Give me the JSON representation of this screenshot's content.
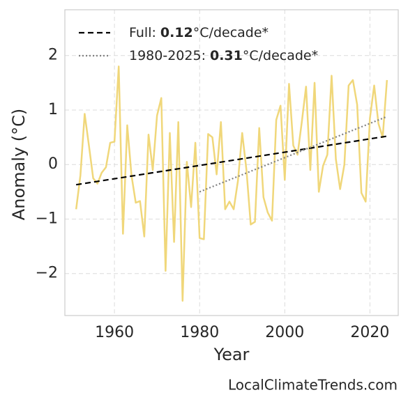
{
  "chart_data": {
    "type": "line",
    "x_label": "Year",
    "y_label": "Anomaly (°C)",
    "x": [
      1951,
      1952,
      1953,
      1954,
      1955,
      1956,
      1957,
      1958,
      1959,
      1960,
      1961,
      1962,
      1963,
      1964,
      1965,
      1966,
      1967,
      1968,
      1969,
      1970,
      1971,
      1972,
      1973,
      1974,
      1975,
      1976,
      1977,
      1978,
      1979,
      1980,
      1981,
      1982,
      1983,
      1984,
      1985,
      1986,
      1987,
      1988,
      1989,
      1990,
      1991,
      1992,
      1993,
      1994,
      1995,
      1996,
      1997,
      1998,
      1999,
      2000,
      2001,
      2002,
      2003,
      2004,
      2005,
      2006,
      2007,
      2008,
      2009,
      2010,
      2011,
      2012,
      2013,
      2014,
      2015,
      2016,
      2017,
      2018,
      2019,
      2020,
      2021,
      2022,
      2023,
      2024
    ],
    "series": [
      {
        "color": "#f0d77a",
        "values": [
          -0.82,
          -0.2,
          0.93,
          0.35,
          -0.25,
          -0.35,
          -0.15,
          -0.05,
          0.4,
          0.42,
          1.8,
          -1.27,
          0.72,
          -0.2,
          -0.7,
          -0.67,
          -1.32,
          0.55,
          -0.1,
          0.9,
          1.22,
          -1.95,
          0.58,
          -1.42,
          0.78,
          -2.5,
          0.05,
          -0.78,
          0.4,
          -1.35,
          -1.37,
          0.56,
          0.5,
          -0.18,
          0.78,
          -0.82,
          -0.68,
          -0.82,
          -0.3,
          0.58,
          -0.1,
          -1.1,
          -1.05,
          0.67,
          -0.6,
          -0.88,
          -1.03,
          0.82,
          1.08,
          -0.28,
          1.48,
          0.35,
          0.18,
          0.78,
          1.43,
          -0.1,
          1.5,
          -0.5,
          -0.02,
          0.18,
          1.63,
          0.1,
          -0.45,
          0.0,
          1.45,
          1.55,
          1.1,
          -0.52,
          -0.68,
          0.85,
          1.45,
          0.75,
          0.5,
          1.55
        ]
      }
    ],
    "trend_lines": [
      {
        "label": "Full:",
        "rate": 0.12,
        "unit": "°C/decade*",
        "color": "#000000",
        "style": "dashed",
        "x": [
          1951,
          2024
        ],
        "values": [
          -0.37,
          0.52
        ]
      },
      {
        "label": "1980-2025:",
        "rate": 0.31,
        "unit": "°C/decade*",
        "color": "#808080",
        "style": "dotted",
        "x": [
          1980,
          2024
        ],
        "values": [
          -0.5,
          0.88
        ]
      }
    ],
    "xlim": [
      1948.35,
      2026.65
    ],
    "xticks": [
      1960,
      1980,
      2000,
      2020
    ],
    "ylim": [
      -2.77,
      2.84
    ],
    "yticks": [
      {
        "value": -2,
        "label": "−2"
      },
      {
        "value": -1,
        "label": "−1"
      },
      0,
      1,
      2
    ],
    "grid": true,
    "legend": "upper left",
    "footer": "LocalClimateTrends.com"
  }
}
